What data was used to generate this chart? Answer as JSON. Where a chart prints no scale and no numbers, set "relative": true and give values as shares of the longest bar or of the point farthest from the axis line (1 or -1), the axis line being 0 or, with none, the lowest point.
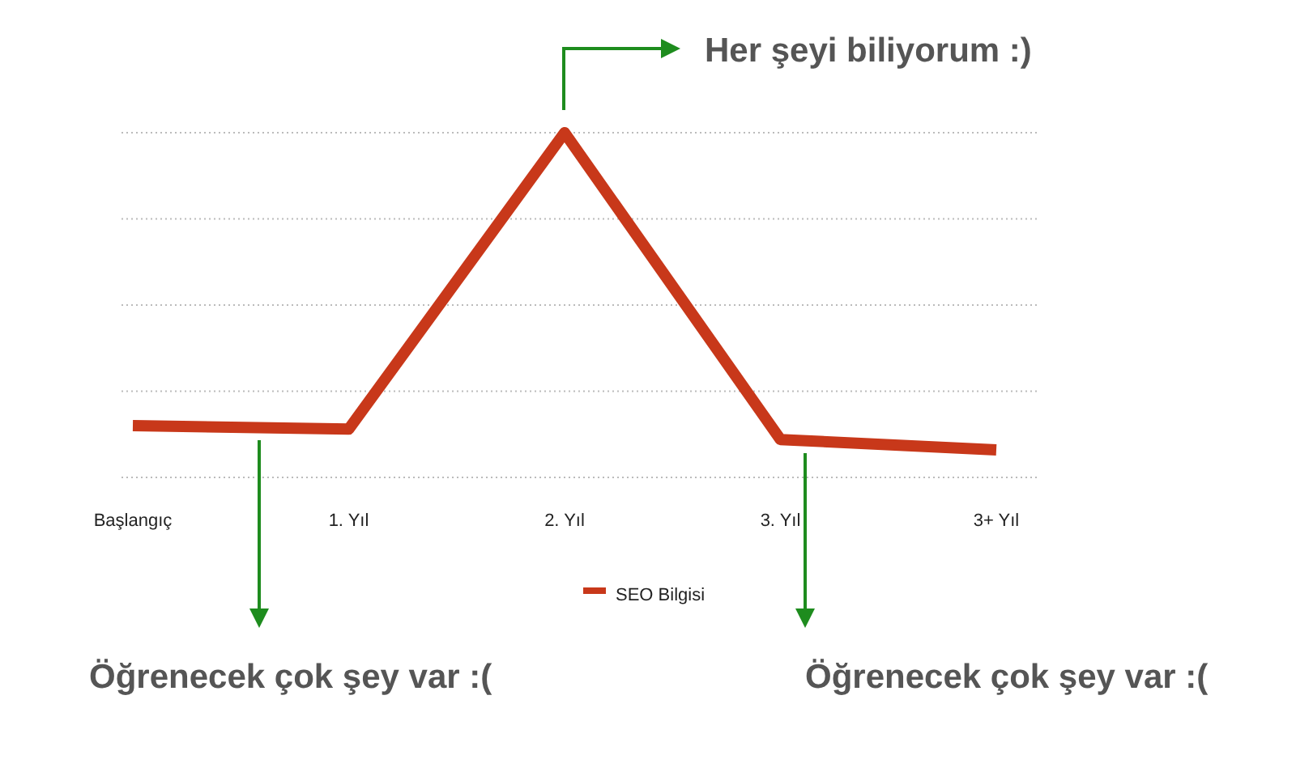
{
  "chart_data": {
    "type": "line",
    "relative": true,
    "categories": [
      "Başlangıç",
      "1. Yıl",
      "2. Yıl",
      "3. Yıl",
      "3+ Yıl"
    ],
    "series": [
      {
        "name": "SEO Bilgisi",
        "color": "#c8381a",
        "values": [
          0.15,
          0.14,
          1,
          0.11,
          0.08
        ]
      }
    ],
    "grid": "y",
    "legend": "bottom",
    "marker": "none",
    "line_style": "solid",
    "annotations": [
      "Her şeyi biliyorum :)",
      "Öğrenecek çok şey var :(",
      "Öğrenecek çok şey var :("
    ]
  }
}
